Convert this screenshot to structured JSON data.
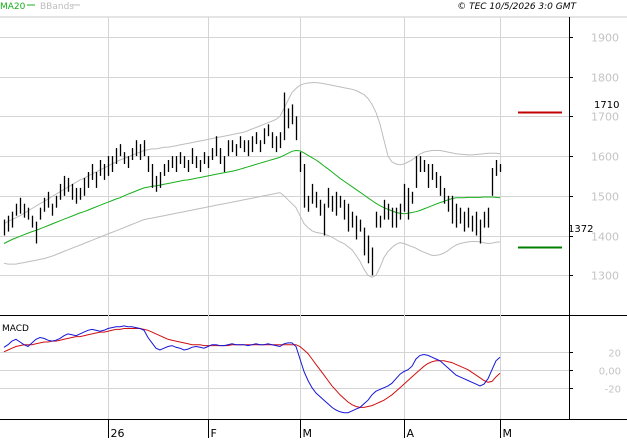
{
  "header": {
    "legend_ma": "MA20",
    "legend_bbands": "BBands",
    "copyright": "© TEC 10/5/2026 3:0 GMT"
  },
  "colors": {
    "price_bar": "#000000",
    "ma20": "#16b01a",
    "bbands": "#bdbdbd",
    "macd_line": "#1515d8",
    "signal_line": "#d01010",
    "resistance": "#c00000",
    "support": "#008000",
    "grid": "#d4d4d4",
    "axis_text": "#c4c4c4",
    "axis_divider": "#000000"
  },
  "chart_data": [
    {
      "type": "ohlc-bar",
      "name": "price",
      "title": "",
      "ylim": [
        1200,
        1950
      ],
      "y_ticks": [
        1300,
        1400,
        1500,
        1600,
        1700,
        1800,
        1900
      ],
      "y_tick_labels": [
        "1300",
        "1400",
        "1500",
        "1600",
        "1700",
        "1800",
        "1900"
      ],
      "x_month_labels": [
        {
          "label": "26",
          "index": 26
        },
        {
          "label": "F",
          "index": 51
        },
        {
          "label": "M",
          "index": 74
        },
        {
          "label": "A",
          "index": 100
        },
        {
          "label": "M",
          "index": 124
        }
      ],
      "bars": [
        [
          1400,
          1440
        ],
        [
          1410,
          1450
        ],
        [
          1420,
          1460
        ],
        [
          1450,
          1480
        ],
        [
          1455,
          1495
        ],
        [
          1445,
          1480
        ],
        [
          1440,
          1470
        ],
        [
          1420,
          1450
        ],
        [
          1380,
          1435
        ],
        [
          1440,
          1470
        ],
        [
          1460,
          1495
        ],
        [
          1470,
          1510
        ],
        [
          1450,
          1480
        ],
        [
          1470,
          1500
        ],
        [
          1490,
          1530
        ],
        [
          1500,
          1550
        ],
        [
          1510,
          1545
        ],
        [
          1490,
          1530
        ],
        [
          1480,
          1520
        ],
        [
          1490,
          1520
        ],
        [
          1500,
          1545
        ],
        [
          1520,
          1560
        ],
        [
          1540,
          1580
        ],
        [
          1520,
          1560
        ],
        [
          1550,
          1590
        ],
        [
          1540,
          1580
        ],
        [
          1550,
          1600
        ],
        [
          1560,
          1600
        ],
        [
          1580,
          1620
        ],
        [
          1600,
          1630
        ],
        [
          1580,
          1610
        ],
        [
          1570,
          1600
        ],
        [
          1590,
          1620
        ],
        [
          1600,
          1640
        ],
        [
          1590,
          1630
        ],
        [
          1600,
          1640
        ],
        [
          1560,
          1600
        ],
        [
          1520,
          1580
        ],
        [
          1510,
          1550
        ],
        [
          1520,
          1560
        ],
        [
          1550,
          1580
        ],
        [
          1560,
          1590
        ],
        [
          1570,
          1600
        ],
        [
          1560,
          1600
        ],
        [
          1580,
          1610
        ],
        [
          1570,
          1600
        ],
        [
          1560,
          1590
        ],
        [
          1580,
          1620
        ],
        [
          1570,
          1600
        ],
        [
          1560,
          1590
        ],
        [
          1580,
          1610
        ],
        [
          1570,
          1600
        ],
        [
          1590,
          1620
        ],
        [
          1600,
          1650
        ],
        [
          1580,
          1620
        ],
        [
          1560,
          1600
        ],
        [
          1600,
          1640
        ],
        [
          1610,
          1640
        ],
        [
          1600,
          1630
        ],
        [
          1620,
          1650
        ],
        [
          1610,
          1640
        ],
        [
          1600,
          1640
        ],
        [
          1610,
          1650
        ],
        [
          1630,
          1660
        ],
        [
          1610,
          1640
        ],
        [
          1630,
          1670
        ],
        [
          1650,
          1680
        ],
        [
          1620,
          1660
        ],
        [
          1610,
          1650
        ],
        [
          1620,
          1660
        ],
        [
          1640,
          1760
        ],
        [
          1670,
          1720
        ],
        [
          1680,
          1730
        ],
        [
          1640,
          1700
        ],
        [
          1560,
          1610
        ],
        [
          1470,
          1580
        ],
        [
          1460,
          1500
        ],
        [
          1480,
          1530
        ],
        [
          1470,
          1510
        ],
        [
          1450,
          1490
        ],
        [
          1400,
          1480
        ],
        [
          1470,
          1520
        ],
        [
          1460,
          1500
        ],
        [
          1450,
          1510
        ],
        [
          1470,
          1500
        ],
        [
          1440,
          1490
        ],
        [
          1410,
          1480
        ],
        [
          1420,
          1460
        ],
        [
          1390,
          1450
        ],
        [
          1410,
          1440
        ],
        [
          1350,
          1420
        ],
        [
          1330,
          1400
        ],
        [
          1300,
          1370
        ],
        [
          1420,
          1460
        ],
        [
          1420,
          1450
        ],
        [
          1440,
          1490
        ],
        [
          1440,
          1480
        ],
        [
          1420,
          1470
        ],
        [
          1420,
          1470
        ],
        [
          1440,
          1480
        ],
        [
          1460,
          1530
        ],
        [
          1440,
          1520
        ],
        [
          1480,
          1510
        ],
        [
          1520,
          1600
        ],
        [
          1560,
          1600
        ],
        [
          1560,
          1590
        ],
        [
          1520,
          1580
        ],
        [
          1540,
          1580
        ],
        [
          1520,
          1560
        ],
        [
          1500,
          1550
        ],
        [
          1480,
          1520
        ],
        [
          1460,
          1500
        ],
        [
          1430,
          1500
        ],
        [
          1420,
          1480
        ],
        [
          1430,
          1470
        ],
        [
          1410,
          1460
        ],
        [
          1420,
          1470
        ],
        [
          1410,
          1450
        ],
        [
          1400,
          1460
        ],
        [
          1380,
          1440
        ],
        [
          1420,
          1460
        ],
        [
          1420,
          1470
        ],
        [
          1500,
          1570
        ],
        [
          1550,
          1590
        ],
        [
          1560,
          1580
        ]
      ],
      "ma20": [
        1380,
        1385,
        1390,
        1394,
        1398,
        1402,
        1406,
        1410,
        1413,
        1417,
        1421,
        1425,
        1429,
        1433,
        1437,
        1441,
        1445,
        1449,
        1453,
        1457,
        1460,
        1464,
        1468,
        1472,
        1476,
        1480,
        1484,
        1488,
        1492,
        1495,
        1500,
        1504,
        1508,
        1512,
        1516,
        1520,
        1522,
        1524,
        1525,
        1527,
        1529,
        1531,
        1533,
        1535,
        1537,
        1539,
        1540,
        1542,
        1544,
        1546,
        1548,
        1550,
        1552,
        1554,
        1556,
        1558,
        1560,
        1562,
        1564,
        1567,
        1570,
        1573,
        1576,
        1579,
        1582,
        1585,
        1588,
        1591,
        1594,
        1597,
        1602,
        1607,
        1612,
        1614,
        1613,
        1608,
        1602,
        1596,
        1590,
        1583,
        1575,
        1568,
        1560,
        1552,
        1544,
        1537,
        1530,
        1523,
        1516,
        1509,
        1502,
        1495,
        1488,
        1481,
        1475,
        1470,
        1466,
        1462,
        1458,
        1456,
        1455,
        1456,
        1458,
        1460,
        1463,
        1467,
        1471,
        1475,
        1479,
        1483,
        1486,
        1490,
        1493,
        1495,
        1495,
        1495,
        1496,
        1496,
        1496,
        1496,
        1497,
        1497,
        1497,
        1496,
        1495
      ],
      "bb_upper": [
        1430,
        1435,
        1440,
        1445,
        1450,
        1456,
        1462,
        1468,
        1474,
        1480,
        1486,
        1492,
        1498,
        1504,
        1510,
        1516,
        1522,
        1528,
        1534,
        1540,
        1544,
        1550,
        1555,
        1560,
        1565,
        1570,
        1575,
        1580,
        1585,
        1590,
        1594,
        1598,
        1602,
        1606,
        1610,
        1614,
        1616,
        1618,
        1618,
        1620,
        1622,
        1622,
        1624,
        1626,
        1628,
        1630,
        1632,
        1634,
        1636,
        1638,
        1640,
        1642,
        1644,
        1646,
        1648,
        1650,
        1652,
        1654,
        1656,
        1658,
        1660,
        1664,
        1668,
        1672,
        1676,
        1680,
        1684,
        1688,
        1692,
        1700,
        1720,
        1740,
        1760,
        1770,
        1778,
        1782,
        1784,
        1785,
        1785,
        1784,
        1782,
        1780,
        1778,
        1776,
        1774,
        1772,
        1770,
        1768,
        1765,
        1760,
        1755,
        1745,
        1730,
        1710,
        1680,
        1640,
        1600,
        1585,
        1580,
        1578,
        1580,
        1585,
        1590,
        1598,
        1605,
        1610,
        1612,
        1614,
        1614,
        1614,
        1612,
        1610,
        1608,
        1606,
        1605,
        1604,
        1603,
        1603,
        1604,
        1605,
        1606,
        1607,
        1607,
        1607,
        1606
      ],
      "bb_lower": [
        1330,
        1328,
        1328,
        1328,
        1330,
        1332,
        1334,
        1336,
        1338,
        1340,
        1342,
        1345,
        1348,
        1352,
        1356,
        1360,
        1364,
        1368,
        1372,
        1376,
        1380,
        1384,
        1388,
        1392,
        1396,
        1400,
        1404,
        1408,
        1412,
        1416,
        1420,
        1424,
        1428,
        1432,
        1436,
        1440,
        1442,
        1444,
        1446,
        1448,
        1450,
        1452,
        1454,
        1456,
        1458,
        1460,
        1462,
        1464,
        1466,
        1468,
        1470,
        1472,
        1474,
        1476,
        1478,
        1480,
        1482,
        1484,
        1486,
        1488,
        1490,
        1492,
        1494,
        1496,
        1498,
        1500,
        1502,
        1504,
        1506,
        1508,
        1500,
        1490,
        1480,
        1470,
        1450,
        1430,
        1420,
        1412,
        1408,
        1406,
        1404,
        1400,
        1396,
        1390,
        1384,
        1380,
        1372,
        1364,
        1350,
        1335,
        1315,
        1300,
        1295,
        1300,
        1320,
        1345,
        1360,
        1370,
        1378,
        1382,
        1380,
        1376,
        1372,
        1368,
        1362,
        1358,
        1354,
        1350,
        1350,
        1352,
        1356,
        1362,
        1370,
        1376,
        1380,
        1382,
        1384,
        1385,
        1385,
        1384,
        1382,
        1380,
        1381,
        1383,
        1384
      ],
      "resistance": {
        "value": 1710,
        "label": "1710"
      },
      "support": {
        "value": 1372,
        "label": "1372"
      }
    },
    {
      "type": "line",
      "name": "MACD",
      "title": "MACD",
      "ylim": [
        -55,
        60
      ],
      "y_ticks": [
        20,
        0,
        -20
      ],
      "y_tick_labels": [
        "20",
        "0,00",
        "-20"
      ],
      "macd": [
        25,
        28,
        32,
        34,
        31,
        28,
        26,
        30,
        34,
        36,
        35,
        33,
        32,
        33,
        35,
        38,
        40,
        39,
        38,
        40,
        42,
        44,
        45,
        44,
        43,
        44,
        46,
        47,
        48,
        48,
        49,
        48,
        48,
        47,
        46,
        44,
        36,
        30,
        24,
        22,
        24,
        26,
        27,
        25,
        24,
        22,
        23,
        25,
        26,
        25,
        24,
        26,
        28,
        28,
        27,
        27,
        28,
        29,
        28,
        28,
        28,
        27,
        28,
        29,
        28,
        28,
        29,
        28,
        27,
        26,
        29,
        30,
        30,
        26,
        12,
        -2,
        -12,
        -20,
        -26,
        -30,
        -34,
        -38,
        -42,
        -45,
        -47,
        -48,
        -48,
        -46,
        -44,
        -42,
        -38,
        -34,
        -28,
        -24,
        -22,
        -20,
        -18,
        -15,
        -10,
        -5,
        -2,
        0,
        4,
        12,
        16,
        17,
        16,
        14,
        12,
        10,
        6,
        2,
        -2,
        -6,
        -8,
        -10,
        -12,
        -14,
        -16,
        -18,
        -16,
        -10,
        0,
        10,
        14
      ],
      "signal": [
        20,
        22,
        24,
        26,
        27,
        28,
        28,
        28,
        29,
        30,
        31,
        31,
        32,
        32,
        33,
        34,
        35,
        36,
        37,
        37,
        38,
        39,
        40,
        41,
        42,
        42,
        43,
        44,
        45,
        45,
        46,
        46,
        46,
        46,
        46,
        45,
        44,
        42,
        40,
        38,
        36,
        34,
        33,
        32,
        31,
        30,
        29,
        28,
        28,
        28,
        27,
        27,
        27,
        27,
        27,
        27,
        27,
        28,
        28,
        28,
        28,
        28,
        28,
        28,
        28,
        28,
        28,
        28,
        28,
        28,
        28,
        28,
        28,
        28,
        26,
        22,
        18,
        12,
        6,
        0,
        -6,
        -12,
        -18,
        -23,
        -28,
        -32,
        -36,
        -39,
        -41,
        -42,
        -42,
        -41,
        -40,
        -38,
        -36,
        -34,
        -31,
        -28,
        -24,
        -20,
        -16,
        -12,
        -8,
        -4,
        0,
        4,
        7,
        9,
        10,
        10,
        10,
        9,
        8,
        6,
        4,
        2,
        0,
        -3,
        -6,
        -9,
        -12,
        -14,
        -13,
        -8,
        -4
      ]
    }
  ]
}
